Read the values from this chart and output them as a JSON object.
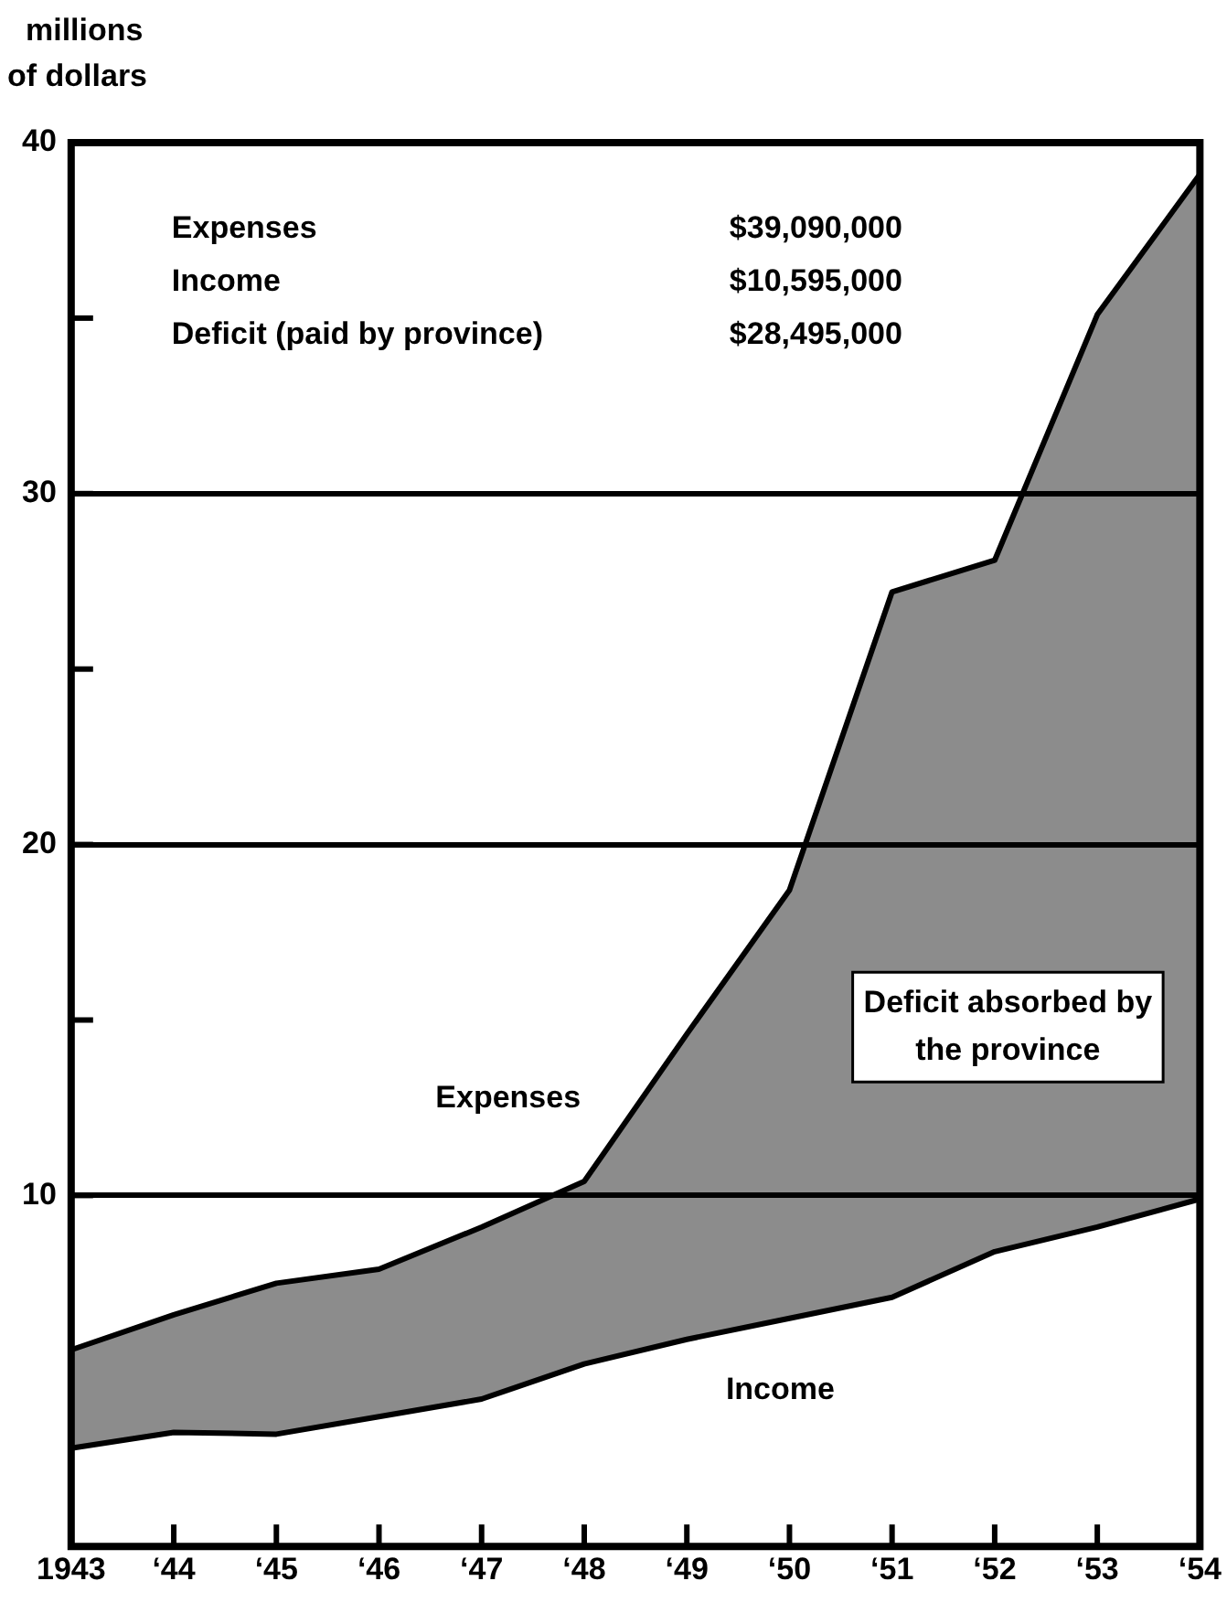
{
  "chart_data": {
    "type": "area",
    "ylabel": "millions of dollars",
    "categories": [
      "1943",
      "‘44",
      "‘45",
      "‘46",
      "‘47",
      "‘48",
      "‘49",
      "‘50",
      "‘51",
      "‘52",
      "‘53",
      "‘54"
    ],
    "ylim": [
      0,
      40
    ],
    "yticks": [
      10,
      {
        "value": 15,
        "label": null
      },
      20,
      {
        "value": 25,
        "label": null
      },
      30,
      {
        "value": 35,
        "label": null
      },
      40
    ],
    "grid": "y",
    "marker": "none",
    "series": [
      {
        "name": "Income",
        "color": "#000000",
        "values": [
          2.8,
          3.25,
          3.2,
          3.7,
          4.2,
          5.2,
          5.9,
          6.5,
          7.1,
          8.4,
          9.1,
          9.9
        ]
      },
      {
        "name": "Expenses",
        "color": "#000000",
        "values": [
          5.6,
          6.6,
          7.5,
          7.9,
          9.1,
          10.4,
          14.6,
          18.7,
          27.2,
          28.1,
          35.1,
          39.1
        ]
      }
    ],
    "annotations": [
      "Expenses\t$39,090,000",
      "Income\t$10,595,000",
      "Deficit (paid by province)\t$28,495,000",
      "Deficit absorbed by the province"
    ]
  }
}
